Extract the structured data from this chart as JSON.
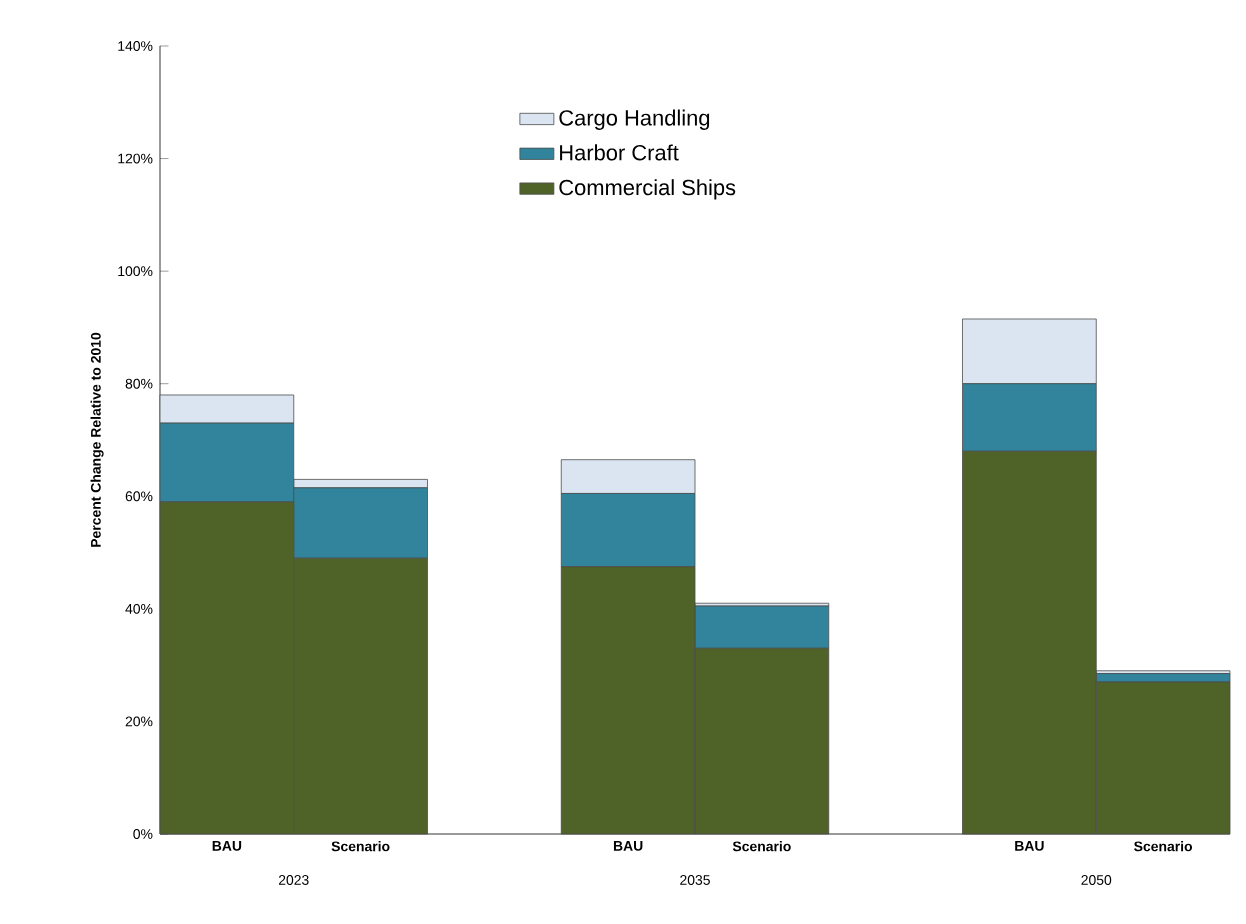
{
  "chart_data": {
    "type": "bar",
    "stacked": true,
    "ylabel": "Percent Change Relative to 2010",
    "categories": [
      "BAU",
      "Scenario",
      "BAU",
      "Scenario",
      "BAU",
      "Scenario"
    ],
    "annotations": [
      "2023",
      "2035",
      "2050"
    ],
    "series": [
      {
        "name": "Commercial Ships",
        "color": "#4f6228",
        "values": [
          59,
          49,
          47.5,
          33,
          68,
          27
        ]
      },
      {
        "name": "Harbor Craft",
        "color": "#31849b",
        "values": [
          14,
          12.5,
          13,
          7.5,
          12,
          1.5
        ]
      },
      {
        "name": "Cargo Handling",
        "color": "#dbe5f1",
        "values": [
          5,
          1.5,
          6,
          0.5,
          11.5,
          0.5
        ]
      }
    ],
    "ylim": [
      0,
      140
    ],
    "yticks": [
      {
        "value": 0,
        "label": "0%"
      },
      {
        "value": 20,
        "label": "20%"
      },
      {
        "value": 40,
        "label": "40%"
      },
      {
        "value": 60,
        "label": "60%"
      },
      {
        "value": 80,
        "label": "80%"
      },
      {
        "value": 100,
        "label": "100%"
      },
      {
        "value": 120,
        "label": "120%"
      },
      {
        "value": 140,
        "label": "140%"
      }
    ],
    "legend": "top",
    "grid": false
  }
}
